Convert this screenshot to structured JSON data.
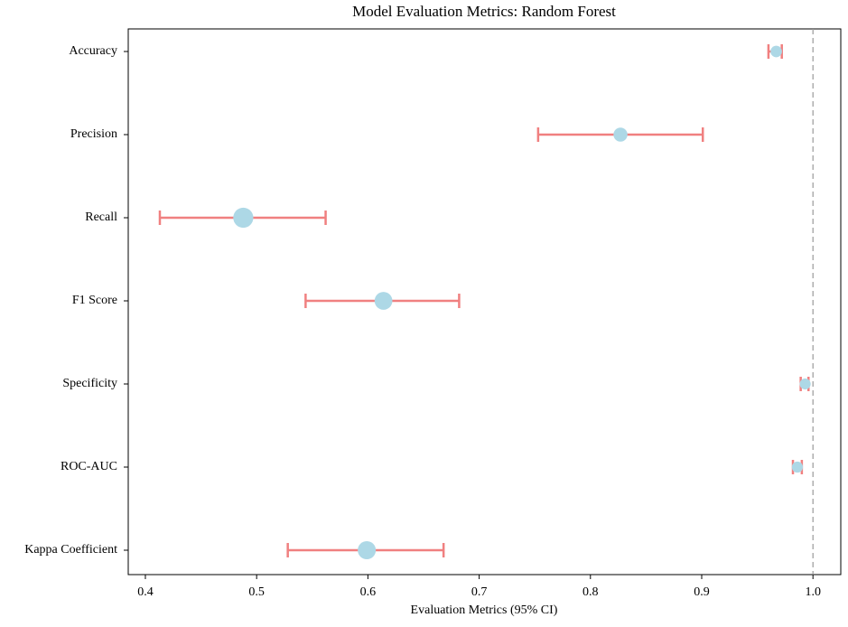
{
  "chart_data": {
    "type": "errorbar",
    "title": "Model Evaluation Metrics: Random Forest",
    "x_label": "Evaluation Metrics (95% CI)",
    "categories": [
      "Accuracy",
      "Precision",
      "Recall",
      "F1 Score",
      "Specificity",
      "ROC-AUC",
      "Kappa Coefficient"
    ],
    "values": [
      0.967,
      0.827,
      0.488,
      0.614,
      0.993,
      0.986,
      0.599
    ],
    "ci_lower": [
      0.96,
      0.753,
      0.413,
      0.544,
      0.989,
      0.982,
      0.528
    ],
    "ci_upper": [
      0.972,
      0.901,
      0.562,
      0.682,
      0.996,
      0.99,
      0.668
    ],
    "point_color": "#add8e6",
    "errorbar_color": "#f08080",
    "reference_line": 1.0,
    "reference_color": "#999999",
    "xlim": [
      0.3846,
      1.025
    ],
    "xticks": [
      0.4,
      0.5,
      0.6,
      0.7,
      0.8,
      0.9,
      {
        "value": 1.0,
        "label": "1.0"
      }
    ]
  }
}
